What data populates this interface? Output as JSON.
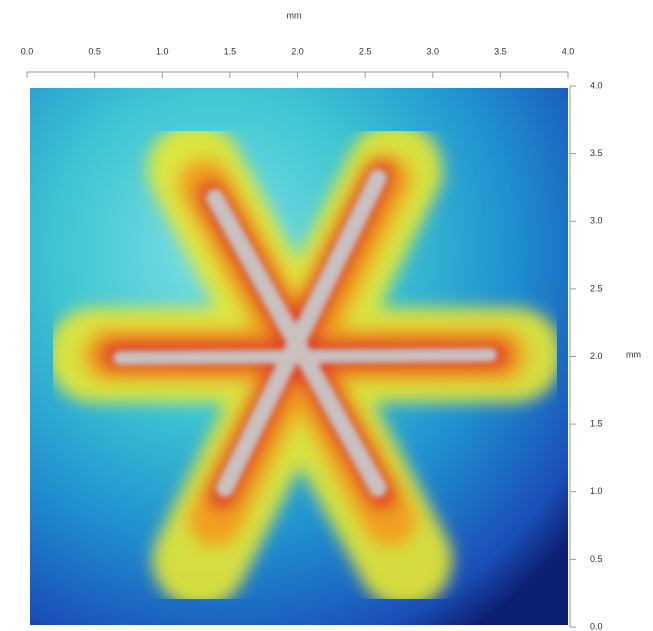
{
  "chart_data": {
    "type": "image",
    "xlabel": "mm",
    "ylabel": "mm",
    "xlim": [
      0,
      4
    ],
    "ylim": [
      0,
      4
    ],
    "xticks": [
      {
        "value": 0,
        "label": "0.0"
      },
      0.5,
      {
        "value": 1,
        "label": "1.0"
      },
      1.5,
      {
        "value": 2,
        "label": "2.0"
      },
      2.5,
      {
        "value": 3,
        "label": "3.0"
      },
      3.5,
      {
        "value": 4,
        "label": "4.0"
      }
    ],
    "yticks": [
      {
        "value": 0,
        "label": "0.0"
      },
      0.5,
      {
        "value": 1,
        "label": "1.0"
      },
      1.5,
      {
        "value": 2,
        "label": "2.0"
      },
      2.5,
      {
        "value": 3,
        "label": "3.0"
      },
      3.5,
      {
        "value": 4,
        "label": "4.0"
      }
    ]
  }
}
